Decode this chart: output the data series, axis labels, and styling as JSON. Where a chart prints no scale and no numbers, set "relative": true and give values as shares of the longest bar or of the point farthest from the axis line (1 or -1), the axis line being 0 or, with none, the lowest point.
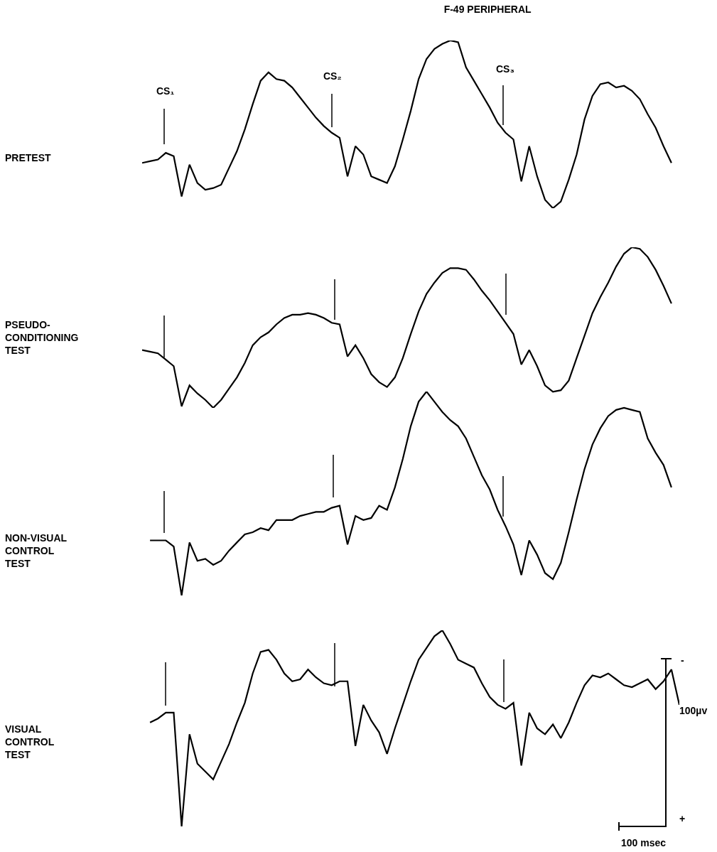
{
  "chart_data": [
    {
      "type": "line",
      "title": "F-49 PERIPHERAL",
      "ylabel": "PRETEST",
      "relative": true,
      "tick_labels": false,
      "categories": [
        null,
        null,
        null,
        null,
        null,
        null,
        null,
        null,
        null,
        null,
        null,
        null,
        null,
        null,
        null,
        null,
        null,
        null,
        null,
        null,
        null,
        null,
        null,
        null,
        null,
        null,
        null,
        null,
        null,
        null,
        null,
        null,
        null,
        null,
        null,
        null,
        null,
        null,
        null,
        null,
        null,
        null,
        null,
        null,
        null,
        null,
        null,
        null,
        null,
        null,
        null,
        null,
        null,
        null,
        null,
        null,
        null,
        null,
        null,
        null,
        null,
        null,
        null,
        null,
        null,
        null,
        null,
        null,
        null
      ],
      "series": [
        {
          "color": "#000000",
          "values": [
            0.27,
            0.28,
            0.29,
            0.33,
            0.31,
            0.07,
            0.26,
            0.15,
            0.11,
            0.12,
            0.14,
            0.24,
            0.34,
            0.47,
            0.62,
            0.76,
            0.81,
            0.77,
            0.76,
            0.72,
            0.66,
            0.6,
            0.54,
            0.49,
            0.45,
            0.42,
            0.19,
            0.37,
            0.32,
            0.19,
            0.17,
            0.15,
            0.25,
            0.41,
            0.58,
            0.77,
            0.89,
            0.95,
            0.98,
            1,
            0.99,
            0.84,
            0.76,
            0.68,
            0.6,
            0.51,
            0.45,
            0.41,
            0.16,
            0.37,
            0.19,
            0.05,
            0,
            0.04,
            0.17,
            0.32,
            0.53,
            0.67,
            0.74,
            0.75,
            0.72,
            0.73,
            0.7,
            0.65,
            0.56,
            0.48,
            0.37,
            0.27,
            null
          ]
        }
      ],
      "annotations": [
        "CS₁",
        "CS₂",
        "CS₃"
      ]
    },
    {
      "type": "line",
      "ylabel": "PSEUDO-\nCONDITIONING\nTEST",
      "relative": true,
      "tick_labels": false,
      "categories": [
        null,
        null,
        null,
        null,
        null,
        null,
        null,
        null,
        null,
        null,
        null,
        null,
        null,
        null,
        null,
        null,
        null,
        null,
        null,
        null,
        null,
        null,
        null,
        null,
        null,
        null,
        null,
        null,
        null,
        null,
        null,
        null,
        null,
        null,
        null,
        null,
        null,
        null,
        null,
        null,
        null,
        null,
        null,
        null,
        null,
        null,
        null,
        null,
        null,
        null,
        null,
        null,
        null,
        null,
        null,
        null,
        null,
        null,
        null,
        null,
        null,
        null,
        null,
        null,
        null,
        null,
        null,
        null,
        null
      ],
      "series": [
        {
          "color": "#000000",
          "values": [
            0.36,
            0.35,
            0.34,
            0.3,
            0.26,
            0.01,
            0.14,
            0.09,
            0.05,
            0,
            0.05,
            0.12,
            0.19,
            0.28,
            0.39,
            0.44,
            0.47,
            0.52,
            0.56,
            0.58,
            0.58,
            0.59,
            0.58,
            0.56,
            0.53,
            0.52,
            0.32,
            0.39,
            0.31,
            0.21,
            0.16,
            0.13,
            0.19,
            0.31,
            0.46,
            0.6,
            0.71,
            0.78,
            0.84,
            0.87,
            0.87,
            0.86,
            0.8,
            0.73,
            0.67,
            0.6,
            0.53,
            0.46,
            0.27,
            0.36,
            0.26,
            0.14,
            0.1,
            0.11,
            0.17,
            0.31,
            0.45,
            0.59,
            0.69,
            0.78,
            0.88,
            0.96,
            1,
            0.99,
            0.94,
            0.86,
            0.76,
            0.65,
            null
          ]
        }
      ]
    },
    {
      "type": "line",
      "ylabel": "NON-VISUAL\nCONTROL\nTEST",
      "relative": true,
      "tick_labels": false,
      "categories": [
        null,
        null,
        null,
        null,
        null,
        null,
        null,
        null,
        null,
        null,
        null,
        null,
        null,
        null,
        null,
        null,
        null,
        null,
        null,
        null,
        null,
        null,
        null,
        null,
        null,
        null,
        null,
        null,
        null,
        null,
        null,
        null,
        null,
        null,
        null,
        null,
        null,
        null,
        null,
        null,
        null,
        null,
        null,
        null,
        null,
        null,
        null,
        null,
        null,
        null,
        null,
        null,
        null,
        null,
        null,
        null,
        null,
        null,
        null,
        null,
        null,
        null,
        null,
        null,
        null,
        null,
        null,
        null,
        null
      ],
      "series": [
        {
          "color": "#000000",
          "values": [
            null,
            0.27,
            0.27,
            0.27,
            0.24,
            0,
            0.26,
            0.17,
            0.18,
            0.15,
            0.17,
            0.22,
            0.26,
            0.3,
            0.31,
            0.33,
            0.32,
            0.37,
            0.37,
            0.37,
            0.39,
            0.4,
            0.41,
            0.41,
            0.43,
            0.44,
            0.25,
            0.39,
            0.37,
            0.38,
            0.44,
            0.42,
            0.53,
            0.67,
            0.83,
            0.95,
            1,
            0.95,
            0.9,
            0.86,
            0.83,
            0.77,
            0.68,
            0.59,
            0.52,
            0.42,
            0.34,
            0.25,
            0.1,
            0.27,
            0.2,
            0.11,
            0.08,
            0.16,
            0.31,
            0.47,
            0.62,
            0.74,
            0.82,
            0.88,
            0.91,
            0.92,
            0.91,
            0.9,
            0.77,
            0.7,
            0.64,
            0.53,
            null
          ]
        }
      ]
    },
    {
      "type": "line",
      "ylabel": "VISUAL\nCONTROL\nTEST",
      "relative": true,
      "tick_labels": false,
      "categories": [
        null,
        null,
        null,
        null,
        null,
        null,
        null,
        null,
        null,
        null,
        null,
        null,
        null,
        null,
        null,
        null,
        null,
        null,
        null,
        null,
        null,
        null,
        null,
        null,
        null,
        null,
        null,
        null,
        null,
        null,
        null,
        null,
        null,
        null,
        null,
        null,
        null,
        null,
        null,
        null,
        null,
        null,
        null,
        null,
        null,
        null,
        null,
        null,
        null,
        null,
        null,
        null,
        null,
        null,
        null,
        null,
        null,
        null,
        null,
        null,
        null,
        null,
        null,
        null,
        null,
        null,
        null,
        null,
        null
      ],
      "series": [
        {
          "color": "#000000",
          "values": [
            null,
            0.53,
            0.55,
            0.58,
            0.58,
            0,
            0.47,
            0.32,
            0.28,
            0.24,
            0.33,
            0.42,
            0.53,
            0.63,
            0.78,
            0.89,
            0.9,
            0.85,
            0.78,
            0.74,
            0.75,
            0.8,
            0.76,
            0.73,
            0.72,
            0.74,
            0.74,
            0.41,
            0.62,
            0.54,
            0.48,
            0.37,
            0.5,
            0.62,
            0.74,
            0.85,
            0.91,
            0.97,
            1,
            0.93,
            0.85,
            0.83,
            0.81,
            0.73,
            0.66,
            0.62,
            0.6,
            0.63,
            0.31,
            0.58,
            0.5,
            0.47,
            0.52,
            0.45,
            0.53,
            0.63,
            0.72,
            0.77,
            0.76,
            0.78,
            0.75,
            0.72,
            0.71,
            0.73,
            0.75,
            0.7,
            0.74,
            0.8,
            0.62
          ]
        }
      ],
      "annotations": [
        "-",
        "100µv",
        "+",
        "100 msec"
      ]
    }
  ]
}
